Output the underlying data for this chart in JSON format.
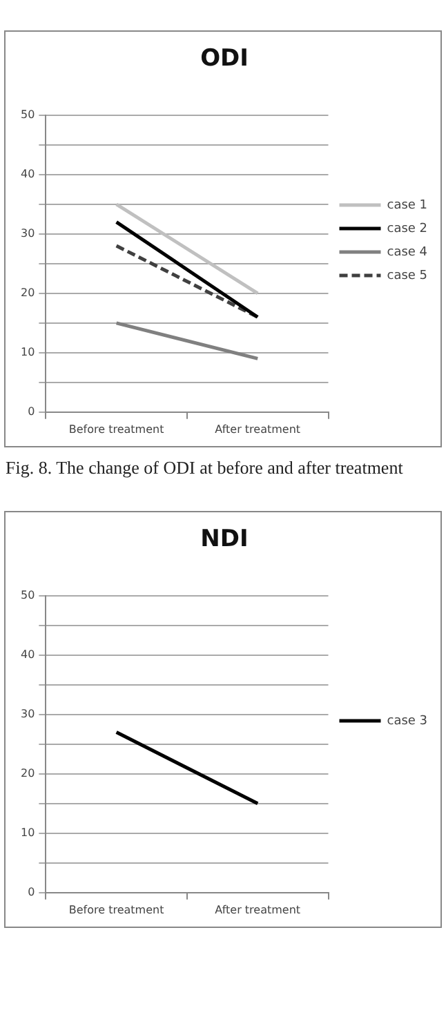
{
  "chart_data": [
    {
      "type": "line",
      "title": "ODI",
      "categories": [
        "Before treatment",
        "After treatment"
      ],
      "ylim": [
        0,
        50
      ],
      "yticks": [
        0,
        {
          "value": 5,
          "label": null
        },
        10,
        {
          "value": 15,
          "label": null
        },
        20,
        {
          "value": 25,
          "label": null
        },
        30,
        {
          "value": 35,
          "label": null
        },
        40,
        {
          "value": 45,
          "label": null
        },
        50
      ],
      "grid": "y",
      "legend": "right",
      "marker": "none",
      "series": [
        {
          "name": "case 1",
          "color": "#c0c0c0",
          "values": [
            35,
            20
          ],
          "line_style": "solid"
        },
        {
          "name": "case 2",
          "color": "#000000",
          "values": [
            32,
            16
          ],
          "line_style": "solid"
        },
        {
          "name": "case 4",
          "color": "#808080",
          "values": [
            15,
            9
          ],
          "line_style": "solid"
        },
        {
          "name": "case 5",
          "color": "#404040",
          "values": [
            28,
            16
          ],
          "line_style": "dashed"
        }
      ],
      "annotations": [
        "Fig. 8. The change of ODI at before and after treatment"
      ]
    },
    {
      "type": "line",
      "title": "NDI",
      "categories": [
        "Before treatment",
        "After treatment"
      ],
      "ylim": [
        0,
        50
      ],
      "yticks": [
        0,
        {
          "value": 5,
          "label": null
        },
        10,
        {
          "value": 15,
          "label": null
        },
        20,
        {
          "value": 25,
          "label": null
        },
        30,
        {
          "value": 35,
          "label": null
        },
        40,
        {
          "value": 45,
          "label": null
        },
        50
      ],
      "grid": "y",
      "legend": "right",
      "marker": "none",
      "series": [
        {
          "name": "case 3",
          "color": "#000000",
          "values": [
            27,
            15
          ],
          "line_style": "solid"
        }
      ]
    }
  ]
}
